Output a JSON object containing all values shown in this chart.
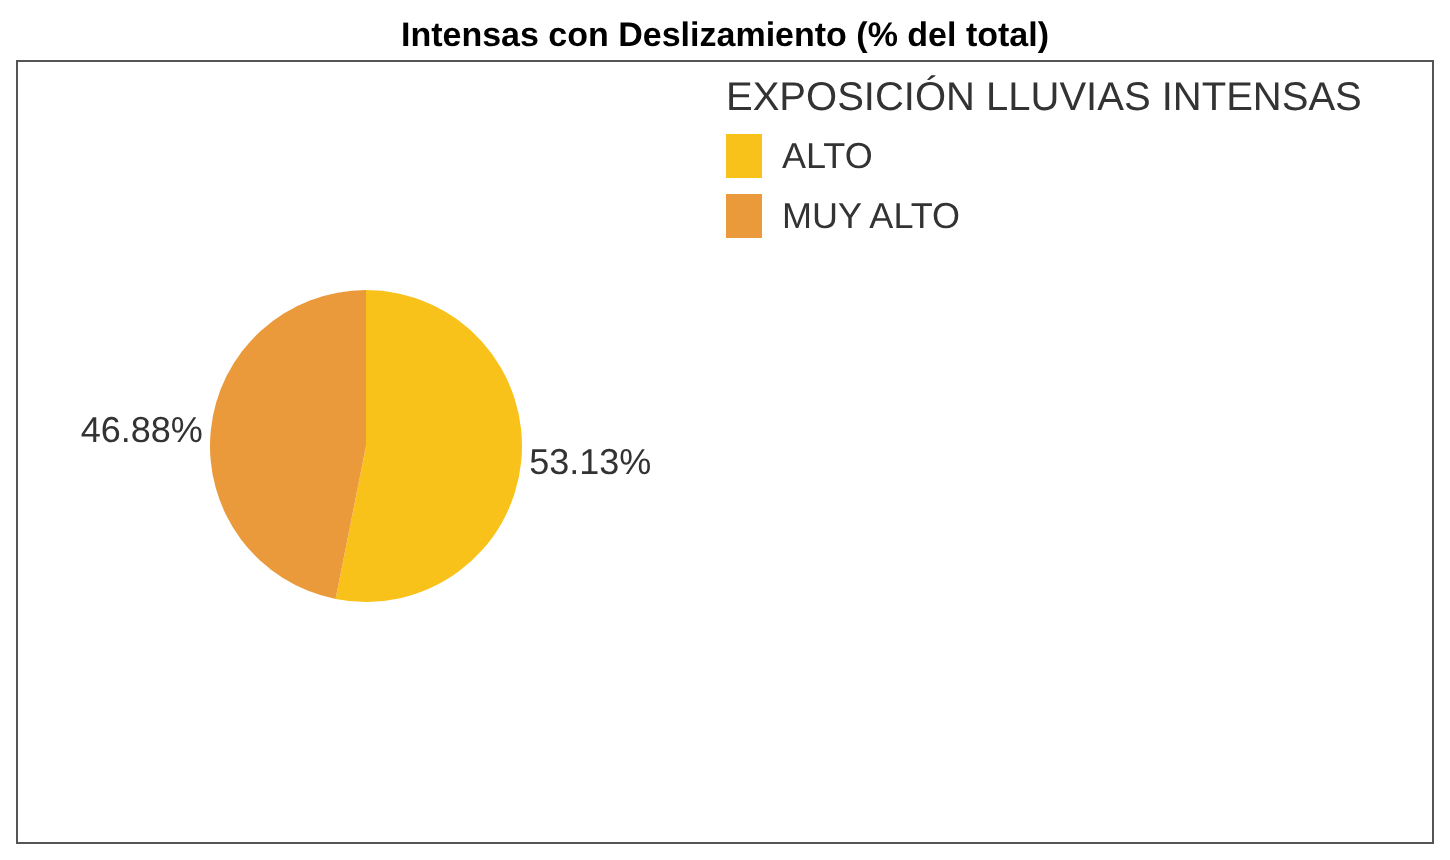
{
  "chart_data": {
    "type": "pie",
    "title": "Intensas con Deslizamiento (% del total)",
    "categories": [
      "ALTO",
      "MUY ALTO"
    ],
    "values": [
      53.13,
      46.88
    ],
    "colors": [
      "#f8c21a",
      "#ea9a3a"
    ],
    "value_labels": [
      "53.13%",
      "46.88%"
    ],
    "legend_title": "EXPOSICIÓN LLUVIAS INTENSAS",
    "legend": "top right"
  }
}
